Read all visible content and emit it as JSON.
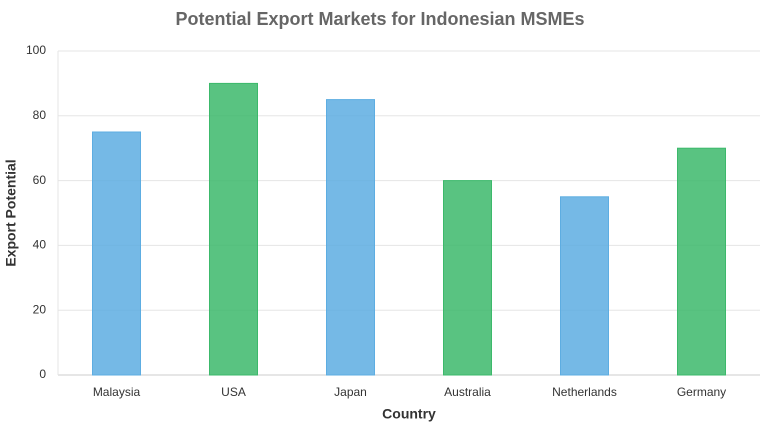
{
  "chart_data": {
    "type": "bar",
    "title": "Potential Export Markets for Indonesian MSMEs",
    "x_label": "Country",
    "y_label": "Export Potential",
    "categories": [
      "Malaysia",
      "USA",
      "Japan",
      "Australia",
      "Netherlands",
      "Germany"
    ],
    "values": [
      75,
      90,
      85,
      60,
      55,
      70
    ],
    "colors": [
      "#5dade2",
      "#3cb96b",
      "#5dade2",
      "#3cb96b",
      "#5dade2",
      "#3cb96b"
    ],
    "ylim": [
      0,
      100
    ],
    "yticks": [
      0,
      20,
      40,
      60,
      80,
      100
    ],
    "grid": true
  }
}
